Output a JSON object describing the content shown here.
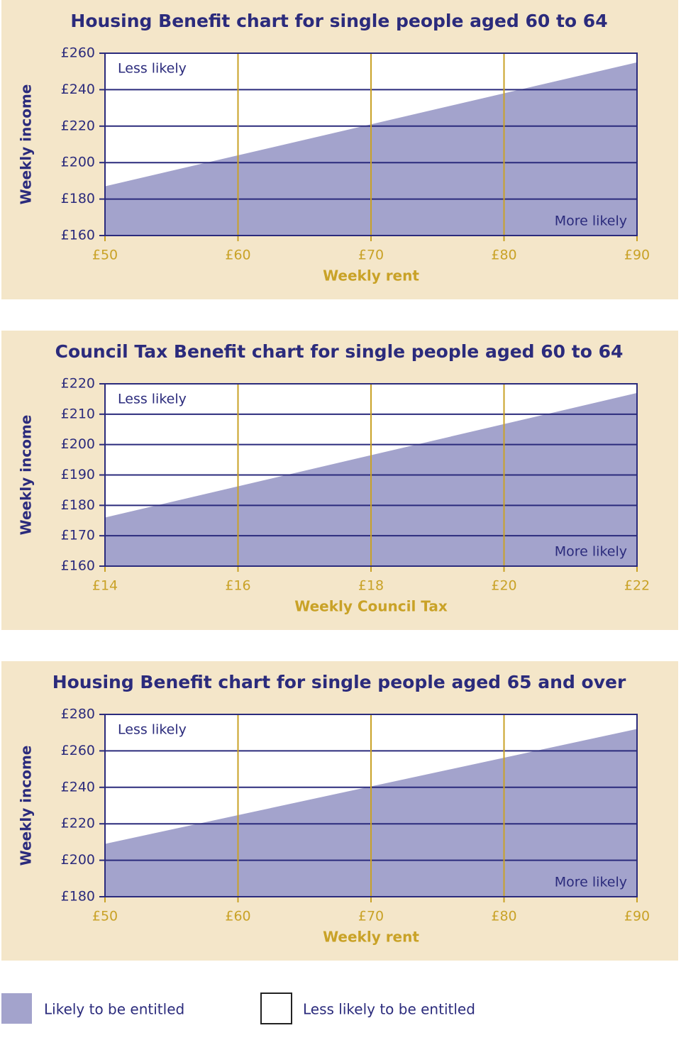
{
  "chart_data": [
    {
      "type": "area",
      "title": "Housing Benefit chart for single people aged 60 to 64",
      "x_label": "Weekly rent",
      "y_label": "Weekly income",
      "annotations": [
        "Less likely",
        "More likely"
      ],
      "x": [
        50,
        90
      ],
      "series": [
        {
          "name": "Likely to be entitled",
          "color": "#a3a3cc",
          "values": [
            187,
            255
          ]
        }
      ],
      "xlim": [
        50,
        90
      ],
      "xticks": [
        {
          "value": 50,
          "label": "£50"
        },
        {
          "value": 60,
          "label": "£60"
        },
        {
          "value": 70,
          "label": "£70"
        },
        {
          "value": 80,
          "label": "£80"
        },
        {
          "value": 90,
          "label": "£90"
        }
      ],
      "ylim": [
        160,
        260
      ],
      "yticks": [
        {
          "value": 160,
          "label": "£160"
        },
        {
          "value": 180,
          "label": "£180"
        },
        {
          "value": 200,
          "label": "£200"
        },
        {
          "value": 220,
          "label": "£220"
        },
        {
          "value": 240,
          "label": "£240"
        },
        {
          "value": 260,
          "label": "£260"
        }
      ],
      "grid": true
    },
    {
      "type": "area",
      "title": "Council Tax Benefit chart for single people aged 60 to 64",
      "x_label": "Weekly Council Tax",
      "y_label": "Weekly income",
      "annotations": [
        "Less likely",
        "More likely"
      ],
      "x": [
        14,
        22
      ],
      "series": [
        {
          "name": "Likely to be entitled",
          "color": "#a3a3cc",
          "values": [
            176,
            217
          ]
        }
      ],
      "xlim": [
        14,
        22
      ],
      "xticks": [
        {
          "value": 14,
          "label": "£14"
        },
        {
          "value": 16,
          "label": "£16"
        },
        {
          "value": 18,
          "label": "£18"
        },
        {
          "value": 20,
          "label": "£20"
        },
        {
          "value": 22,
          "label": "£22"
        }
      ],
      "ylim": [
        160,
        220
      ],
      "yticks": [
        {
          "value": 160,
          "label": "£160"
        },
        {
          "value": 170,
          "label": "£170"
        },
        {
          "value": 180,
          "label": "£180"
        },
        {
          "value": 190,
          "label": "£190"
        },
        {
          "value": 200,
          "label": "£200"
        },
        {
          "value": 210,
          "label": "£210"
        },
        {
          "value": 220,
          "label": "£220"
        }
      ],
      "grid": true
    },
    {
      "type": "area",
      "title": "Housing Benefit chart for single people aged 65 and over",
      "x_label": "Weekly rent",
      "y_label": "Weekly income",
      "annotations": [
        "Less likely",
        "More likely"
      ],
      "x": [
        50,
        90
      ],
      "series": [
        {
          "name": "Likely to be entitled",
          "color": "#a3a3cc",
          "values": [
            209,
            272
          ]
        }
      ],
      "xlim": [
        50,
        90
      ],
      "xticks": [
        {
          "value": 50,
          "label": "£50"
        },
        {
          "value": 60,
          "label": "£60"
        },
        {
          "value": 70,
          "label": "£70"
        },
        {
          "value": 80,
          "label": "£80"
        },
        {
          "value": 90,
          "label": "£90"
        }
      ],
      "ylim": [
        180,
        280
      ],
      "yticks": [
        {
          "value": 180,
          "label": "£180"
        },
        {
          "value": 200,
          "label": "£200"
        },
        {
          "value": 220,
          "label": "£220"
        },
        {
          "value": 240,
          "label": "£240"
        },
        {
          "value": 260,
          "label": "£260"
        },
        {
          "value": 280,
          "label": "£280"
        }
      ],
      "grid": true
    }
  ],
  "legend": [
    {
      "label": "Likely to be entitled",
      "color": "#a3a3cc"
    },
    {
      "label": "Less likely to be entitled",
      "color": "#ffffff"
    }
  ]
}
